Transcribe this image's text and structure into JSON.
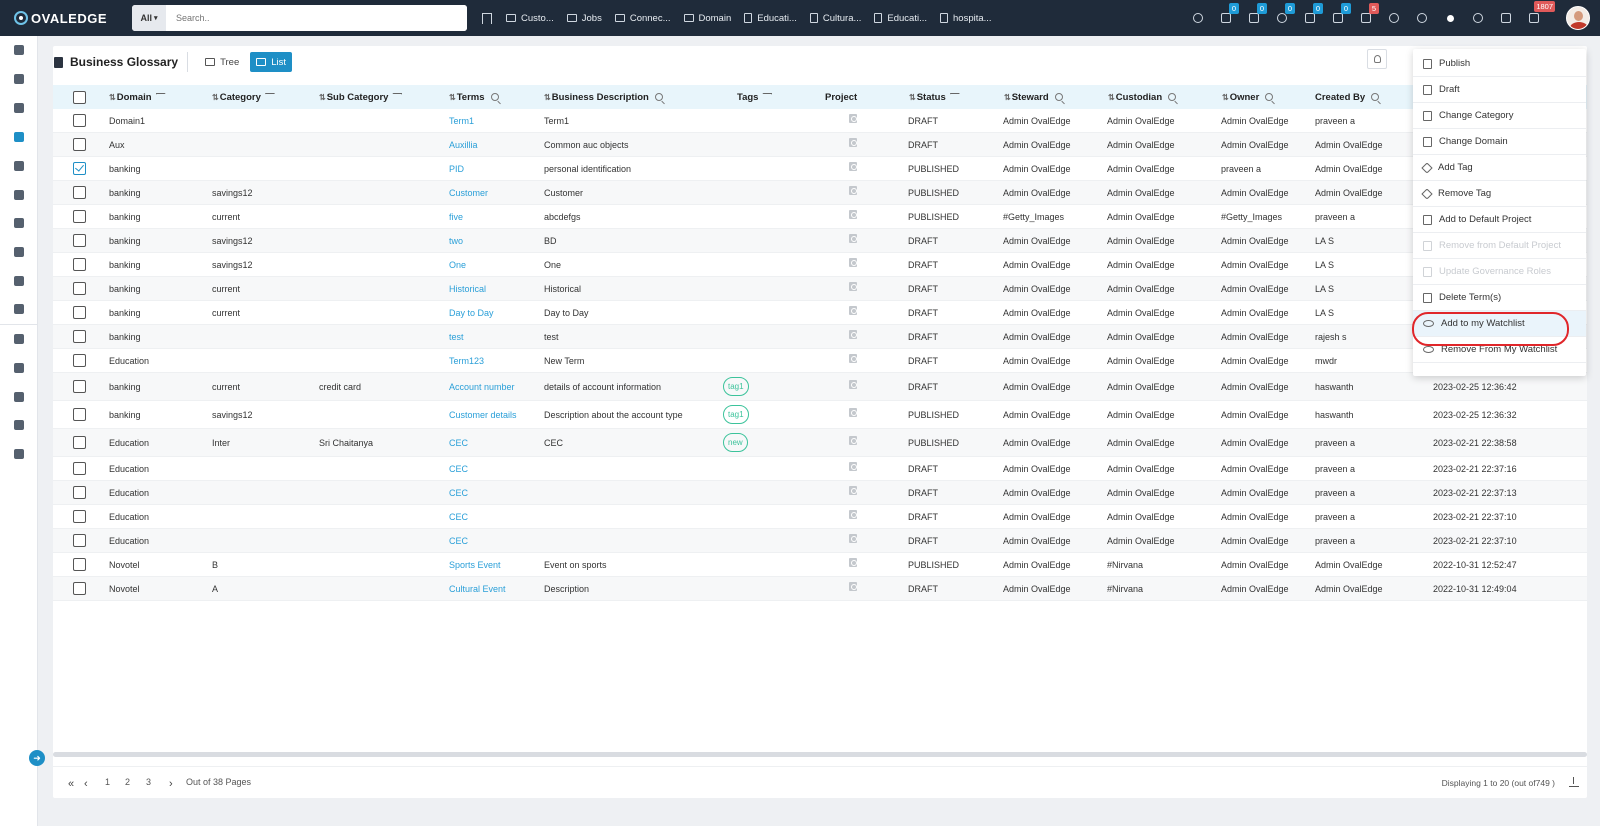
{
  "app": {
    "logo_text": "OVALEDGE"
  },
  "search": {
    "scope": "All",
    "placeholder": "Search.."
  },
  "top_tabs": [
    "Custo...",
    "Jobs",
    "Connec...",
    "Domain",
    "Educati...",
    "Cultura...",
    "Educati...",
    "hospita..."
  ],
  "top_badges": {
    "b1": "0",
    "b2": "0",
    "b3": "0",
    "b4": "0",
    "b5": "0",
    "b6": "5",
    "b7": "1807"
  },
  "page": {
    "title": "Business Glossary",
    "view_tree": "Tree",
    "view_list": "List"
  },
  "columns": {
    "domain": "Domain",
    "category": "Category",
    "sub_category": "Sub Category",
    "terms": "Terms",
    "business_description": "Business Description",
    "tags": "Tags",
    "project": "Project",
    "status": "Status",
    "steward": "Steward",
    "custodian": "Custodian",
    "owner": "Owner",
    "created_by": "Created By"
  },
  "rows": [
    {
      "domain": "Domain1",
      "category": "",
      "sub_category": "",
      "term": "Term1",
      "description": "Term1",
      "tag": "",
      "status": "DRAFT",
      "steward": "Admin OvalEdge",
      "custodian": "Admin OvalEdge",
      "owner": "Admin OvalEdge",
      "created_by": "praveen a",
      "created_on": "",
      "checked": false
    },
    {
      "domain": "Aux",
      "category": "",
      "sub_category": "",
      "term": "Auxillia",
      "description": "Common auc objects",
      "tag": "",
      "status": "DRAFT",
      "steward": "Admin OvalEdge",
      "custodian": "Admin OvalEdge",
      "owner": "Admin OvalEdge",
      "created_by": "Admin OvalEdge",
      "created_on": "",
      "checked": false
    },
    {
      "domain": "banking",
      "category": "",
      "sub_category": "",
      "term": "PID",
      "description": "personal identification",
      "tag": "",
      "status": "PUBLISHED",
      "steward": "Admin OvalEdge",
      "custodian": "Admin OvalEdge",
      "owner": "praveen a",
      "created_by": "Admin OvalEdge",
      "created_on": "",
      "checked": true
    },
    {
      "domain": "banking",
      "category": "savings12",
      "sub_category": "",
      "term": "Customer",
      "description": "Customer",
      "tag": "",
      "status": "PUBLISHED",
      "steward": "Admin OvalEdge",
      "custodian": "Admin OvalEdge",
      "owner": "Admin OvalEdge",
      "created_by": "Admin OvalEdge",
      "created_on": "",
      "checked": false
    },
    {
      "domain": "banking",
      "category": "current",
      "sub_category": "",
      "term": "five",
      "description": "abcdefgs",
      "tag": "",
      "status": "PUBLISHED",
      "steward": "#Getty_Images",
      "custodian": "Admin OvalEdge",
      "owner": "#Getty_Images",
      "created_by": "praveen a",
      "created_on": "",
      "checked": false
    },
    {
      "domain": "banking",
      "category": "savings12",
      "sub_category": "",
      "term": "two",
      "description": "BD",
      "tag": "",
      "status": "DRAFT",
      "steward": "Admin OvalEdge",
      "custodian": "Admin OvalEdge",
      "owner": "Admin OvalEdge",
      "created_by": "LA S",
      "created_on": "",
      "checked": false
    },
    {
      "domain": "banking",
      "category": "savings12",
      "sub_category": "",
      "term": "One",
      "description": "One",
      "tag": "",
      "status": "DRAFT",
      "steward": "Admin OvalEdge",
      "custodian": "Admin OvalEdge",
      "owner": "Admin OvalEdge",
      "created_by": "LA S",
      "created_on": "",
      "checked": false
    },
    {
      "domain": "banking",
      "category": "current",
      "sub_category": "",
      "term": "Historical",
      "description": "Historical",
      "tag": "",
      "status": "DRAFT",
      "steward": "Admin OvalEdge",
      "custodian": "Admin OvalEdge",
      "owner": "Admin OvalEdge",
      "created_by": "LA S",
      "created_on": "",
      "checked": false
    },
    {
      "domain": "banking",
      "category": "current",
      "sub_category": "",
      "term": "Day to Day",
      "description": "Day to Day",
      "tag": "",
      "status": "DRAFT",
      "steward": "Admin OvalEdge",
      "custodian": "Admin OvalEdge",
      "owner": "Admin OvalEdge",
      "created_by": "LA S",
      "created_on": "",
      "checked": false
    },
    {
      "domain": "banking",
      "category": "",
      "sub_category": "",
      "term": "test",
      "description": "test",
      "tag": "",
      "status": "DRAFT",
      "steward": "Admin OvalEdge",
      "custodian": "Admin OvalEdge",
      "owner": "Admin OvalEdge",
      "created_by": "rajesh s",
      "created_on": "",
      "checked": false
    },
    {
      "domain": "Education",
      "category": "",
      "sub_category": "",
      "term": "Term123",
      "description": "New Term",
      "tag": "",
      "status": "DRAFT",
      "steward": "Admin OvalEdge",
      "custodian": "Admin OvalEdge",
      "owner": "Admin OvalEdge",
      "created_by": "mwdr",
      "created_on": "",
      "checked": false
    },
    {
      "domain": "banking",
      "category": "current",
      "sub_category": "credit card",
      "term": "Account number",
      "description": "details of account information",
      "tag": "tag1",
      "status": "DRAFT",
      "steward": "Admin OvalEdge",
      "custodian": "Admin OvalEdge",
      "owner": "Admin OvalEdge",
      "created_by": "haswanth",
      "created_on": "2023-02-25 12:36:42",
      "checked": false
    },
    {
      "domain": "banking",
      "category": "savings12",
      "sub_category": "",
      "term": "Customer details",
      "description": "Description about the account type",
      "tag": "tag1",
      "status": "PUBLISHED",
      "steward": "Admin OvalEdge",
      "custodian": "Admin OvalEdge",
      "owner": "Admin OvalEdge",
      "created_by": "haswanth",
      "created_on": "2023-02-25 12:36:32",
      "checked": false
    },
    {
      "domain": "Education",
      "category": "Inter",
      "sub_category": "Sri Chaitanya",
      "term": "CEC",
      "description": "CEC",
      "tag": "new",
      "status": "PUBLISHED",
      "steward": "Admin OvalEdge",
      "custodian": "Admin OvalEdge",
      "owner": "Admin OvalEdge",
      "created_by": "praveen a",
      "created_on": "2023-02-21 22:38:58",
      "checked": false
    },
    {
      "domain": "Education",
      "category": "",
      "sub_category": "",
      "term": "CEC",
      "description": "",
      "tag": "",
      "status": "DRAFT",
      "steward": "Admin OvalEdge",
      "custodian": "Admin OvalEdge",
      "owner": "Admin OvalEdge",
      "created_by": "praveen a",
      "created_on": "2023-02-21 22:37:16",
      "checked": false
    },
    {
      "domain": "Education",
      "category": "",
      "sub_category": "",
      "term": "CEC",
      "description": "",
      "tag": "",
      "status": "DRAFT",
      "steward": "Admin OvalEdge",
      "custodian": "Admin OvalEdge",
      "owner": "Admin OvalEdge",
      "created_by": "praveen a",
      "created_on": "2023-02-21 22:37:13",
      "checked": false
    },
    {
      "domain": "Education",
      "category": "",
      "sub_category": "",
      "term": "CEC",
      "description": "",
      "tag": "",
      "status": "DRAFT",
      "steward": "Admin OvalEdge",
      "custodian": "Admin OvalEdge",
      "owner": "Admin OvalEdge",
      "created_by": "praveen a",
      "created_on": "2023-02-21 22:37:10",
      "checked": false
    },
    {
      "domain": "Education",
      "category": "",
      "sub_category": "",
      "term": "CEC",
      "description": "",
      "tag": "",
      "status": "DRAFT",
      "steward": "Admin OvalEdge",
      "custodian": "Admin OvalEdge",
      "owner": "Admin OvalEdge",
      "created_by": "praveen a",
      "created_on": "2023-02-21 22:37:10",
      "checked": false
    },
    {
      "domain": "Novotel",
      "category": "B",
      "sub_category": "",
      "term": "Sports Event",
      "description": "Event on sports",
      "tag": "",
      "status": "PUBLISHED",
      "steward": "Admin OvalEdge",
      "custodian": "#Nirvana",
      "owner": "Admin OvalEdge",
      "created_by": "Admin OvalEdge",
      "created_on": "2022-10-31 12:52:47",
      "checked": false
    },
    {
      "domain": "Novotel",
      "category": "A",
      "sub_category": "",
      "term": "Cultural Event",
      "description": "Description",
      "tag": "",
      "status": "DRAFT",
      "steward": "Admin OvalEdge",
      "custodian": "#Nirvana",
      "owner": "Admin OvalEdge",
      "created_by": "Admin OvalEdge",
      "created_on": "2022-10-31 12:49:04",
      "checked": false
    }
  ],
  "menu": [
    {
      "label": "Publish",
      "icon": "doc-icon",
      "disabled": false
    },
    {
      "label": "Draft",
      "icon": "doc-icon",
      "disabled": false
    },
    {
      "label": "Change Category",
      "icon": "doc-icon",
      "disabled": false
    },
    {
      "label": "Change Domain",
      "icon": "doc-icon",
      "disabled": false
    },
    {
      "label": "Add Tag",
      "icon": "tag-icon",
      "disabled": false
    },
    {
      "label": "Remove Tag",
      "icon": "tag-icon",
      "disabled": false
    },
    {
      "label": "Add to Default Project",
      "icon": "doc-icon",
      "disabled": false
    },
    {
      "label": "Remove from Default Project",
      "icon": "doc-icon",
      "disabled": true
    },
    {
      "label": "Update Governance Roles",
      "icon": "users-icon",
      "disabled": true
    },
    {
      "label": "Delete Term(s)",
      "icon": "trash-icon",
      "disabled": false
    },
    {
      "label": "Add to my Watchlist",
      "icon": "eye-icon",
      "disabled": false
    },
    {
      "label": "Remove From My Watchlist",
      "icon": "eye-icon",
      "disabled": false
    }
  ],
  "pagination": {
    "pages": [
      "1",
      "2",
      "3"
    ],
    "out_of": "Out of 38 Pages",
    "displaying": "Displaying 1 to 20  (out of749 )"
  }
}
